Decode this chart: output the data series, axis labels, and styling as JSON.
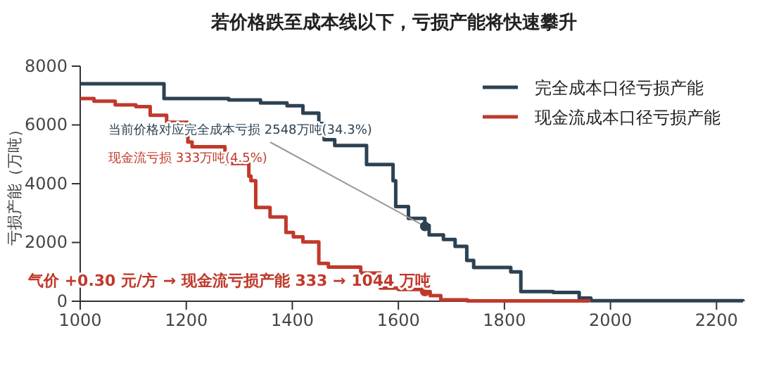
{
  "chart_data": {
    "type": "step",
    "title": "若价格跌至成本线以下，亏损产能将快速攀升",
    "ylabel": "亏损产能（万吨）",
    "xlim": [
      1000,
      2250
    ],
    "xticks": [
      1000,
      1200,
      1400,
      1600,
      1800,
      2000,
      2200
    ],
    "ylim": [
      0,
      8000
    ],
    "yticks": [
      0,
      2000,
      4000,
      6000,
      8000
    ],
    "grid": false,
    "legend": "top right",
    "line_style": "solid",
    "marker": "none",
    "series": [
      {
        "name": "完全成本口径亏损产能",
        "color": "#2c4253",
        "x": [
          1000,
          1158,
          1280,
          1340,
          1390,
          1420,
          1450,
          1460,
          1480,
          1540,
          1590,
          1595,
          1619,
          1650,
          1658,
          1685,
          1707,
          1729,
          1742,
          1812,
          1831,
          1892,
          1941,
          1963,
          2250
        ],
        "values": [
          7400,
          6900,
          6850,
          6750,
          6650,
          6400,
          6050,
          5500,
          5300,
          4650,
          4100,
          3220,
          2820,
          2580,
          2260,
          2100,
          1870,
          1390,
          1150,
          1000,
          330,
          300,
          110,
          20,
          0
        ]
      },
      {
        "name": "现金流成本口径亏损产能",
        "color": "#c0392b",
        "x": [
          1000,
          1026,
          1066,
          1105,
          1132,
          1163,
          1203,
          1211,
          1273,
          1318,
          1322,
          1331,
          1358,
          1388,
          1402,
          1420,
          1450,
          1468,
          1529,
          1566,
          1600,
          1650,
          1660,
          1680,
          1730,
          1960
        ],
        "values": [
          6900,
          6810,
          6680,
          6620,
          6330,
          6090,
          5420,
          5260,
          4690,
          4260,
          4100,
          3190,
          2870,
          2340,
          2190,
          2020,
          1290,
          1160,
          960,
          450,
          400,
          330,
          190,
          50,
          10,
          0
        ]
      }
    ],
    "annotations": [
      {
        "text": "当前价格对应完全成本亏损 2548万吨(34.3%)",
        "x": 1650,
        "y": 2548
      },
      "现金流亏损 333万吨(4.5%)",
      {
        "text": "气价 +0.30 元/方 → 现金流亏损产能 333 → 1044 万吨",
        "x": 1650,
        "y": 333
      }
    ]
  }
}
